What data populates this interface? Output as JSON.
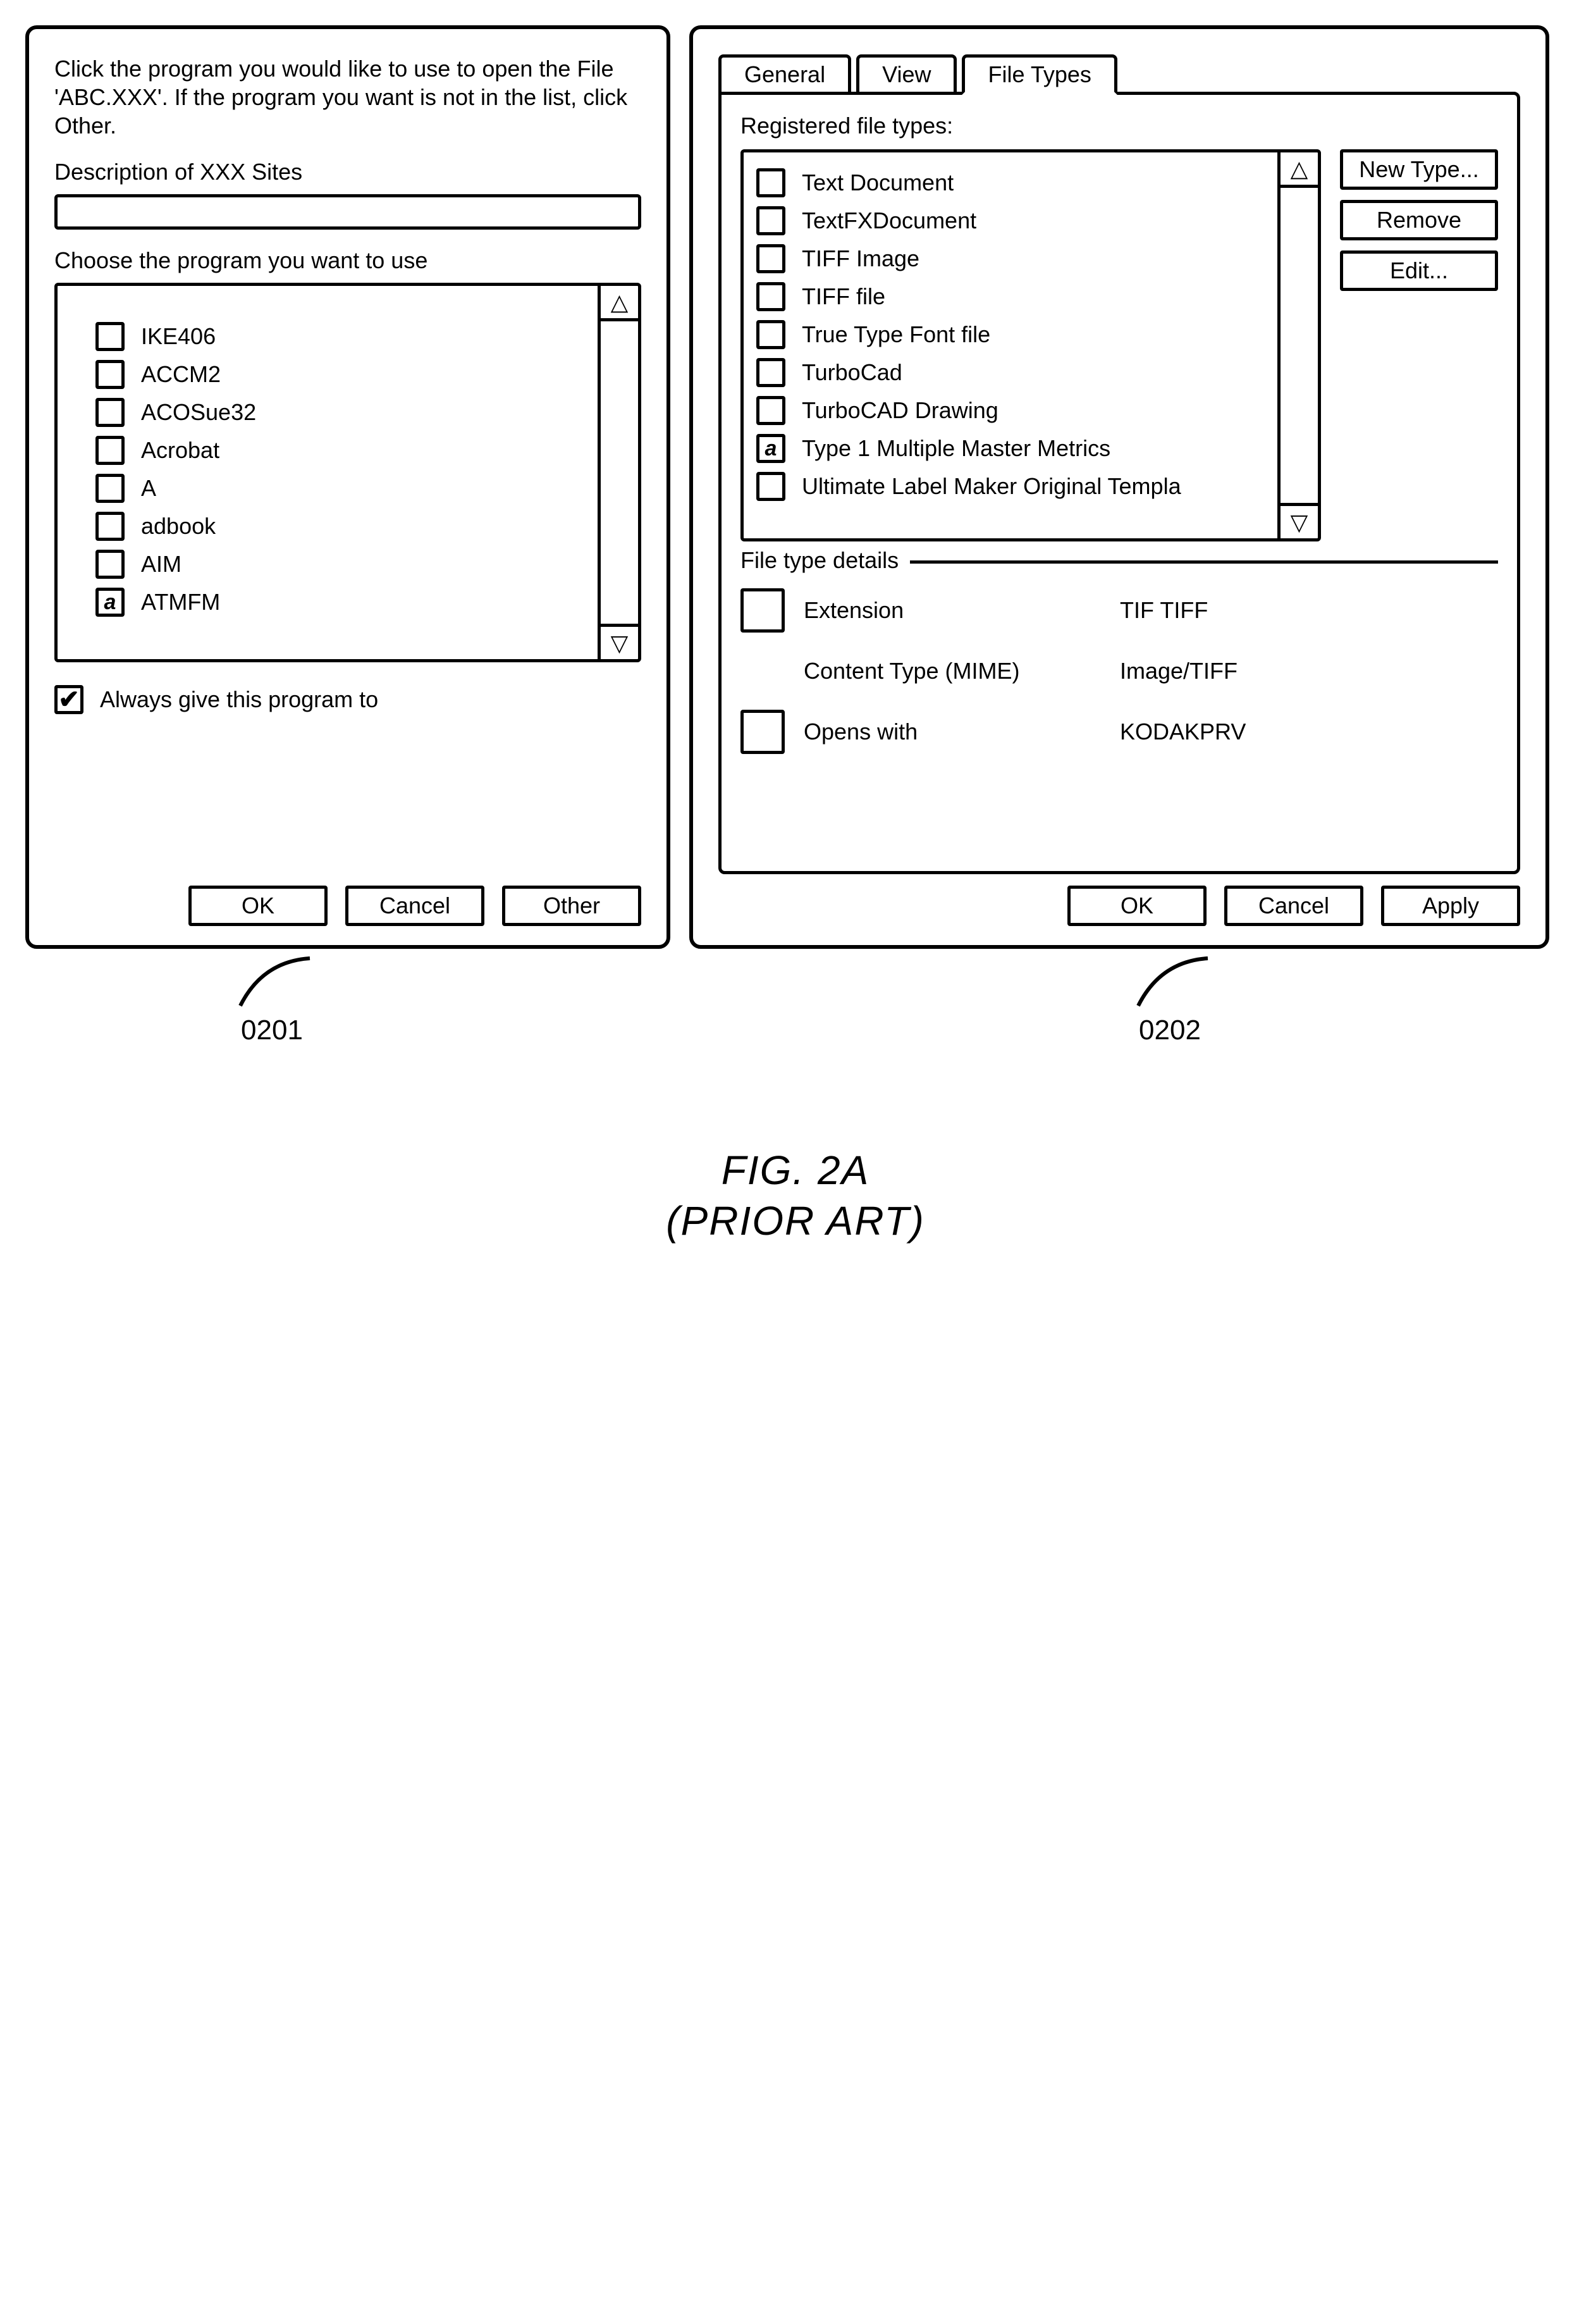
{
  "leftDialog": {
    "instruction": "Click the program you would like to use to open the File 'ABC.XXX'. If the program you want is not in the list, click Other.",
    "descLabel": "Description of XXX Sites",
    "chooseLabel": "Choose the program you want to use",
    "programs": [
      {
        "label": "IKE406",
        "selected": false
      },
      {
        "label": "ACCM2",
        "selected": false
      },
      {
        "label": "ACOSue32",
        "selected": false
      },
      {
        "label": "Acrobat",
        "selected": false
      },
      {
        "label": "A",
        "selected": false
      },
      {
        "label": "adbook",
        "selected": false
      },
      {
        "label": "AIM",
        "selected": false
      },
      {
        "label": "ATMFM",
        "selected": true
      }
    ],
    "alwaysChecked": true,
    "alwaysLabel": "Always give this program to",
    "buttons": {
      "ok": "OK",
      "cancel": "Cancel",
      "other": "Other"
    },
    "callout": "0201"
  },
  "rightDialog": {
    "tabs": {
      "general": "General",
      "view": "View",
      "filetypes": "File Types"
    },
    "regLabel": "Registered file types:",
    "types": [
      {
        "label": "Text Document",
        "selected": false
      },
      {
        "label": "TextFXDocument",
        "selected": false
      },
      {
        "label": "TIFF Image",
        "selected": false
      },
      {
        "label": "TIFF file",
        "selected": false
      },
      {
        "label": "True Type Font file",
        "selected": false
      },
      {
        "label": "TurboCad",
        "selected": false
      },
      {
        "label": "TurboCAD Drawing",
        "selected": false
      },
      {
        "label": "Type 1 Multiple Master Metrics",
        "selected": true
      },
      {
        "label": "Ultimate Label Maker Original Templa",
        "selected": false
      }
    ],
    "sideButtons": {
      "newtype": "New Type...",
      "remove": "Remove",
      "edit": "Edit..."
    },
    "details": {
      "legend": "File type details",
      "extLabel": "Extension",
      "extVal": "TIF TIFF",
      "ctLabel": "Content Type (MIME)",
      "ctVal": "Image/TIFF",
      "owLabel": "Opens with",
      "owVal": "KODAKPRV"
    },
    "buttons": {
      "ok": "OK",
      "cancel": "Cancel",
      "apply": "Apply"
    },
    "callout": "0202"
  },
  "figure": {
    "line1": "FIG. 2A",
    "line2": "(PRIOR ART)"
  },
  "glyphs": {
    "selMark": "a",
    "up": "△",
    "down": "▽"
  }
}
